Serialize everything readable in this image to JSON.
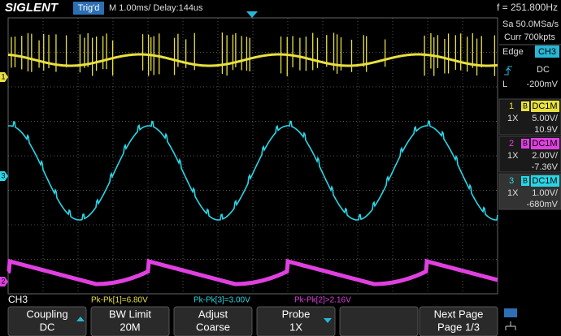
{
  "header": {
    "logo": "SIGLENT",
    "trigger_status": "Trig'd",
    "timebase": "M 1.00ms/ Delay:144us",
    "frequency": "f = 251.800Hz"
  },
  "acquisition": {
    "sample_rate": "Sa 50.0MSa/s",
    "memory": "Curr 700kpts"
  },
  "trigger": {
    "type": "Edge",
    "source": "CH3",
    "coupling": "DC",
    "level_label": "L",
    "level": "-200mV"
  },
  "channels": [
    {
      "number": "1",
      "bw_flag": "B",
      "coupling": "DC1M",
      "probe": "1X",
      "scale": "5.00V/",
      "offset": "10.9V"
    },
    {
      "number": "2",
      "bw_flag": "B",
      "coupling": "DC1M",
      "probe": "1X",
      "scale": "2.00V/",
      "offset": "-7.36V"
    },
    {
      "number": "3",
      "bw_flag": "B",
      "coupling": "DC1M",
      "probe": "1X",
      "scale": "1.00V/",
      "offset": "-680mV"
    }
  ],
  "channel_markers": [
    "1",
    "3",
    "2"
  ],
  "status": {
    "active_channel": "CH3"
  },
  "measurements": [
    "Pk-Pk[1]=6.80V",
    "Pk-Pk[3]=3.00V",
    "Pk-Pk[2]>2.16V"
  ],
  "softkeys": [
    {
      "label": "Coupling",
      "value": "DC"
    },
    {
      "label": "BW Limit",
      "value": "20M"
    },
    {
      "label": "Adjust",
      "value": "Coarse"
    },
    {
      "label": "Probe",
      "value": "1X"
    },
    {
      "label": "Next Page",
      "value": "Page 1/3"
    }
  ]
}
